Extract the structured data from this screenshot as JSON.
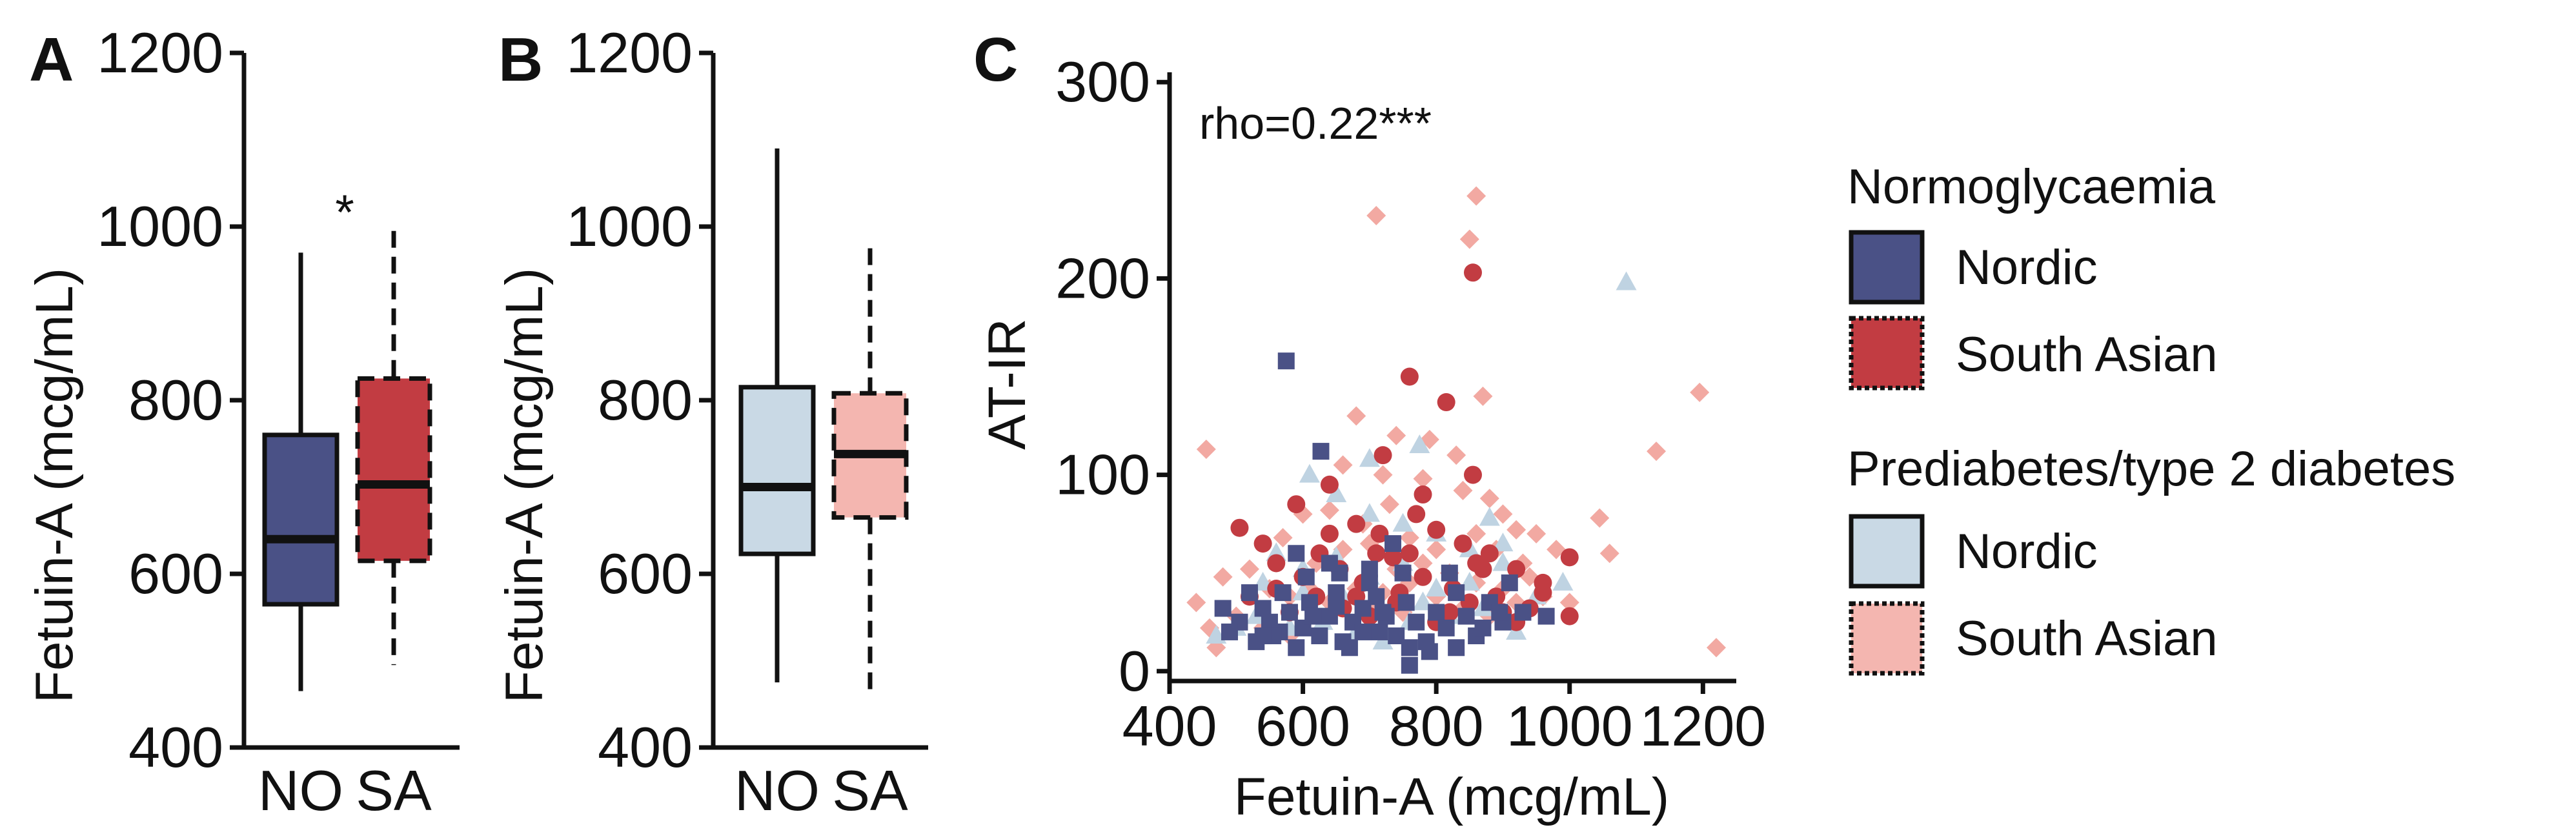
{
  "colors": {
    "nordic_normo": "#4a5186",
    "southasian_normo": "#c23c42",
    "nordic_pre": "#c9d9e5",
    "southasian_pre": "#f4b6b0",
    "scatter_nordic_pre": "#bfd3e2",
    "scatter_southasian_pre": "#f2a9a2",
    "axis": "#111111"
  },
  "chart_data": [
    {
      "panel": "A",
      "type": "box",
      "ylabel": "Fetuin-A (mcg/mL)",
      "ylim": [
        400,
        1200
      ],
      "yticks": [
        400,
        600,
        800,
        1000,
        1200
      ],
      "categories": [
        "NO",
        "SA"
      ],
      "annotation": "*",
      "boxes": [
        {
          "group": "NO",
          "whisker_low": 465,
          "q1": 565,
          "median": 640,
          "q3": 760,
          "whisker_high": 970,
          "color_key": "nordic_normo",
          "dashed": false
        },
        {
          "group": "SA",
          "whisker_low": 495,
          "q1": 615,
          "median": 703,
          "q3": 825,
          "whisker_high": 995,
          "color_key": "southasian_normo",
          "dashed": true
        }
      ]
    },
    {
      "panel": "B",
      "type": "box",
      "ylabel": "Fetuin-A (mcg/mL)",
      "ylim": [
        400,
        1200
      ],
      "yticks": [
        400,
        600,
        800,
        1000,
        1200
      ],
      "categories": [
        "NO",
        "SA"
      ],
      "boxes": [
        {
          "group": "NO",
          "whisker_low": 475,
          "q1": 623,
          "median": 700,
          "q3": 815,
          "whisker_high": 1090,
          "color_key": "nordic_pre",
          "dashed": false
        },
        {
          "group": "SA",
          "whisker_low": 460,
          "q1": 665,
          "median": 738,
          "q3": 808,
          "whisker_high": 975,
          "color_key": "southasian_pre",
          "dashed": true
        }
      ]
    },
    {
      "panel": "C",
      "type": "scatter",
      "xlabel": "Fetuin-A (mcg/mL)",
      "ylabel": "AT-IR",
      "xlim": [
        400,
        1250
      ],
      "ylim": [
        -5,
        305
      ],
      "xticks": [
        400,
        600,
        800,
        1000,
        1200
      ],
      "yticks": [
        0,
        100,
        200,
        300
      ],
      "annotation": "rho=0.22***",
      "series": [
        {
          "name": "Normoglycaemia Nordic",
          "marker": "square",
          "color_key": "nordic_normo",
          "points": [
            [
              575,
              158
            ],
            [
              627,
              112
            ],
            [
              520,
              40
            ],
            [
              540,
              32
            ],
            [
              550,
              25
            ],
            [
              565,
              20
            ],
            [
              580,
              30
            ],
            [
              600,
              22
            ],
            [
              610,
              35
            ],
            [
              625,
              18
            ],
            [
              640,
              28
            ],
            [
              650,
              40
            ],
            [
              660,
              15
            ],
            [
              675,
              25
            ],
            [
              690,
              32
            ],
            [
              700,
              45
            ],
            [
              715,
              20
            ],
            [
              725,
              28
            ],
            [
              740,
              18
            ],
            [
              755,
              35
            ],
            [
              770,
              25
            ],
            [
              785,
              15
            ],
            [
              800,
              30
            ],
            [
              815,
              22
            ],
            [
              830,
              40
            ],
            [
              845,
              28
            ],
            [
              860,
              18
            ],
            [
              880,
              35
            ],
            [
              900,
              25
            ],
            [
              930,
              30
            ],
            [
              965,
              28
            ],
            [
              760,
              3
            ],
            [
              790,
              10
            ],
            [
              505,
              25
            ],
            [
              530,
              15
            ],
            [
              555,
              18
            ],
            [
              590,
              12
            ],
            [
              615,
              28
            ],
            [
              655,
              50
            ],
            [
              700,
              52
            ],
            [
              720,
              30
            ],
            [
              735,
              65
            ],
            [
              750,
              50
            ],
            [
              640,
              55
            ],
            [
              690,
              20
            ],
            [
              820,
              50
            ],
            [
              870,
              22
            ],
            [
              605,
              48
            ],
            [
              895,
              30
            ],
            [
              590,
              60
            ],
            [
              650,
              33
            ],
            [
              710,
              38
            ],
            [
              540,
              18
            ],
            [
              670,
              12
            ],
            [
              760,
              12
            ],
            [
              830,
              12
            ],
            [
              910,
              45
            ],
            [
              480,
              32
            ],
            [
              490,
              20
            ],
            [
              570,
              40
            ]
          ]
        },
        {
          "name": "Normoglycaemia South Asian",
          "marker": "circle",
          "color_key": "southasian_normo",
          "points": [
            [
              855,
              203
            ],
            [
              760,
              150
            ],
            [
              815,
              137
            ],
            [
              855,
              100
            ],
            [
              720,
              110
            ],
            [
              640,
              95
            ],
            [
              590,
              85
            ],
            [
              680,
              75
            ],
            [
              715,
              70
            ],
            [
              770,
              80
            ],
            [
              800,
              72
            ],
            [
              840,
              65
            ],
            [
              880,
              60
            ],
            [
              920,
              52
            ],
            [
              960,
              45
            ],
            [
              1000,
              58
            ],
            [
              505,
              73
            ],
            [
              540,
              65
            ],
            [
              560,
              55
            ],
            [
              600,
              48
            ],
            [
              625,
              60
            ],
            [
              655,
              52
            ],
            [
              690,
              45
            ],
            [
              735,
              58
            ],
            [
              780,
              48
            ],
            [
              825,
              42
            ],
            [
              860,
              55
            ],
            [
              890,
              38
            ],
            [
              940,
              32
            ],
            [
              1000,
              28
            ],
            [
              520,
              38
            ],
            [
              560,
              42
            ],
            [
              620,
              38
            ],
            [
              660,
              32
            ],
            [
              700,
              28
            ],
            [
              740,
              35
            ],
            [
              800,
              25
            ],
            [
              850,
              35
            ],
            [
              900,
              30
            ],
            [
              960,
              40
            ],
            [
              710,
              60
            ],
            [
              760,
              60
            ],
            [
              820,
              30
            ],
            [
              870,
              52
            ],
            [
              920,
              25
            ],
            [
              780,
              90
            ],
            [
              640,
              70
            ],
            [
              580,
              30
            ],
            [
              680,
              38
            ],
            [
              745,
              40
            ]
          ]
        },
        {
          "name": "Prediabetes/type 2 diabetes Nordic",
          "marker": "triangle",
          "color_key": "scatter_nordic_pre",
          "points": [
            [
              1085,
              198
            ],
            [
              775,
              115
            ],
            [
              700,
              108
            ],
            [
              610,
              100
            ],
            [
              650,
              90
            ],
            [
              700,
              80
            ],
            [
              750,
              75
            ],
            [
              800,
              70
            ],
            [
              850,
              62
            ],
            [
              880,
              78
            ],
            [
              900,
              55
            ],
            [
              990,
              45
            ],
            [
              560,
              60
            ],
            [
              600,
              52
            ],
            [
              650,
              58
            ],
            [
              700,
              48
            ],
            [
              750,
              55
            ],
            [
              800,
              42
            ],
            [
              470,
              18
            ],
            [
              500,
              22
            ],
            [
              530,
              28
            ],
            [
              580,
              22
            ],
            [
              630,
              25
            ],
            [
              680,
              20
            ],
            [
              720,
              30
            ],
            [
              760,
              25
            ],
            [
              820,
              28
            ],
            [
              870,
              32
            ],
            [
              920,
              20
            ],
            [
              850,
              45
            ],
            [
              950,
              38
            ],
            [
              540,
              45
            ],
            [
              600,
              40
            ],
            [
              660,
              38
            ],
            [
              720,
              15
            ],
            [
              780,
              35
            ],
            [
              900,
              65
            ]
          ]
        },
        {
          "name": "Prediabetes/type 2 diabetes South Asian",
          "marker": "diamond",
          "color_key": "scatter_southasian_pre",
          "points": [
            [
              710,
              232
            ],
            [
              860,
              242
            ],
            [
              850,
              220
            ],
            [
              1195,
              142
            ],
            [
              1130,
              112
            ],
            [
              1220,
              12
            ],
            [
              455,
              113
            ],
            [
              870,
              140
            ],
            [
              680,
              130
            ],
            [
              740,
              120
            ],
            [
              790,
              118
            ],
            [
              830,
              110
            ],
            [
              660,
              105
            ],
            [
              720,
              100
            ],
            [
              780,
              98
            ],
            [
              840,
              92
            ],
            [
              880,
              88
            ],
            [
              900,
              80
            ],
            [
              920,
              72
            ],
            [
              950,
              70
            ],
            [
              980,
              62
            ],
            [
              1045,
              78
            ],
            [
              1060,
              60
            ],
            [
              640,
              82
            ],
            [
              690,
              75
            ],
            [
              730,
              85
            ],
            [
              760,
              68
            ],
            [
              800,
              62
            ],
            [
              860,
              70
            ],
            [
              890,
              62
            ],
            [
              940,
              48
            ],
            [
              570,
              68
            ],
            [
              600,
              80
            ],
            [
              620,
              55
            ],
            [
              660,
              62
            ],
            [
              700,
              65
            ],
            [
              740,
              52
            ],
            [
              780,
              55
            ],
            [
              820,
              50
            ],
            [
              860,
              45
            ],
            [
              900,
              42
            ],
            [
              930,
              55
            ],
            [
              960,
              38
            ],
            [
              1000,
              35
            ],
            [
              440,
              35
            ],
            [
              480,
              48
            ],
            [
              520,
              52
            ],
            [
              550,
              42
            ],
            [
              580,
              38
            ],
            [
              610,
              42
            ],
            [
              640,
              35
            ],
            [
              680,
              42
            ],
            [
              720,
              40
            ],
            [
              760,
              45
            ],
            [
              800,
              38
            ],
            [
              840,
              32
            ],
            [
              880,
              28
            ],
            [
              920,
              35
            ],
            [
              500,
              28
            ],
            [
              540,
              22
            ],
            [
              580,
              18
            ],
            [
              460,
              22
            ],
            [
              470,
              12
            ],
            [
              700,
              32
            ],
            [
              750,
              30
            ]
          ]
        }
      ]
    }
  ],
  "legend": {
    "groups": [
      {
        "title": "Normoglycaemia",
        "items": [
          {
            "label": "Nordic",
            "color_key": "nordic_normo",
            "dashed": false
          },
          {
            "label": "South Asian",
            "color_key": "southasian_normo",
            "dashed": true
          }
        ]
      },
      {
        "title": "Prediabetes/type 2 diabetes",
        "items": [
          {
            "label": "Nordic",
            "color_key": "nordic_pre",
            "dashed": false
          },
          {
            "label": "South Asian",
            "color_key": "southasian_pre",
            "dashed": true
          }
        ]
      }
    ]
  }
}
